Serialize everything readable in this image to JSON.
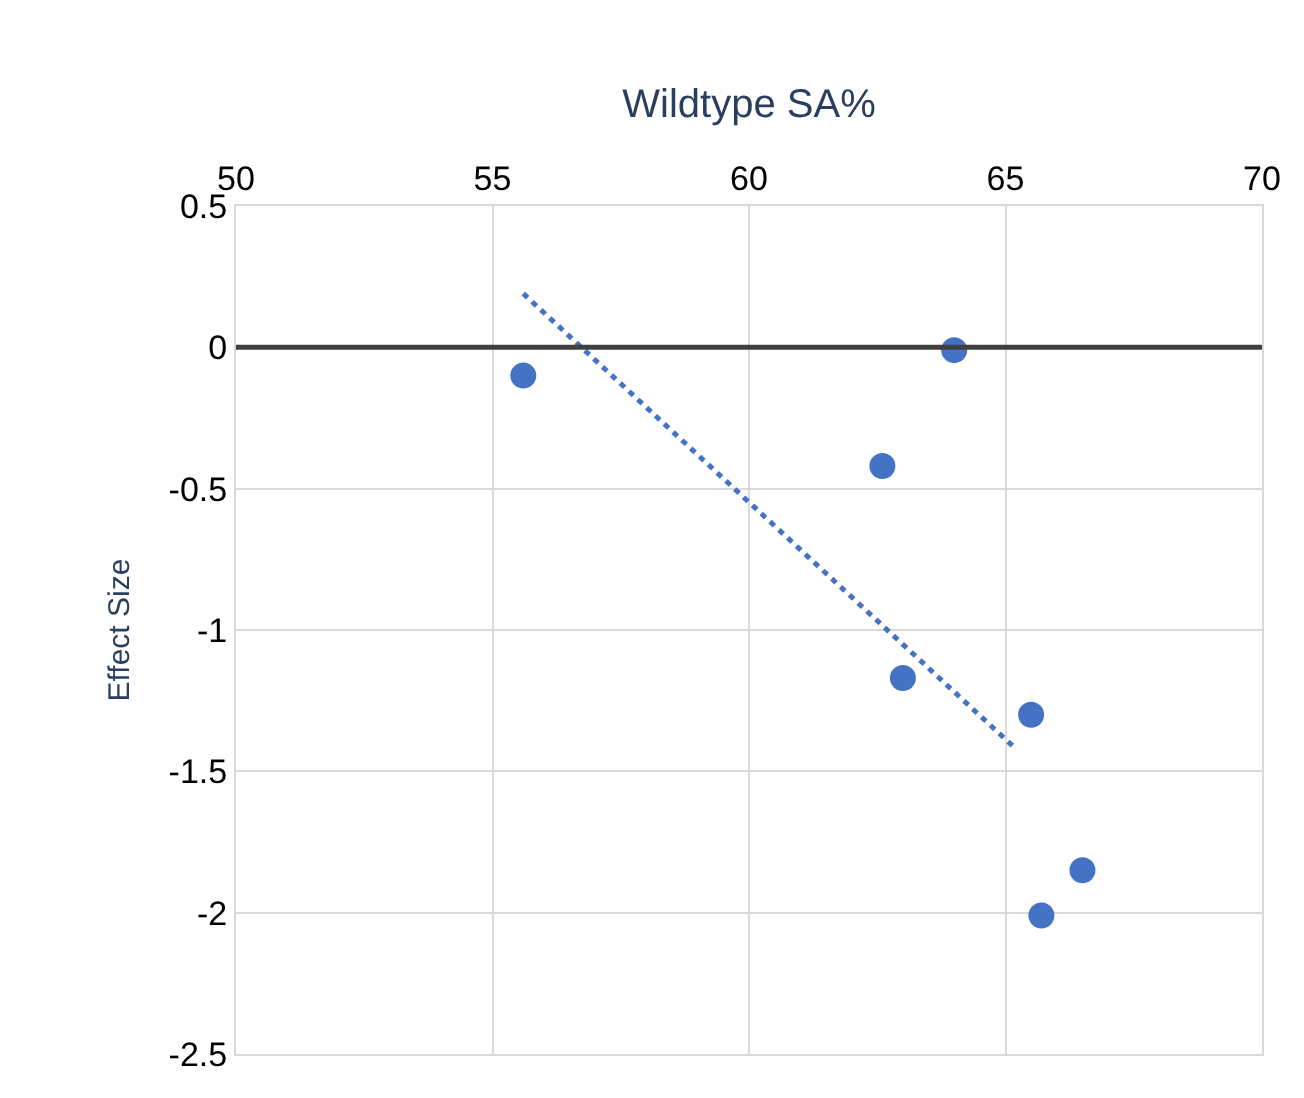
{
  "chart_data": {
    "type": "scatter",
    "xlabel": "Wildtype SA%",
    "ylabel": "Effect Size",
    "series": [
      {
        "color": "#4472c4",
        "x": [
          55.6,
          64.0,
          62.6,
          63.0,
          65.5,
          66.5,
          65.7
        ],
        "values": [
          -0.1,
          -0.01,
          -0.42,
          -1.17,
          -1.3,
          -1.85,
          -2.01
        ],
        "marker": "circle"
      },
      {
        "type": "line",
        "color": "#4472c4",
        "x": [
          55.6,
          65.2
        ],
        "values": [
          0.19,
          -1.42
        ],
        "line_style": "dotted",
        "marker": "none"
      }
    ],
    "xlim": [
      50,
      70
    ],
    "xticks": [
      50,
      55,
      60,
      65,
      70
    ],
    "ylim": [
      -2.5,
      0.5
    ],
    "yticks": [
      0.5,
      0,
      -0.5,
      -1,
      -1.5,
      -2,
      -2.5
    ],
    "ref_lines": [
      {
        "axis": "y",
        "value": 0,
        "color": "#404040"
      }
    ],
    "grid": true,
    "legend": false
  }
}
